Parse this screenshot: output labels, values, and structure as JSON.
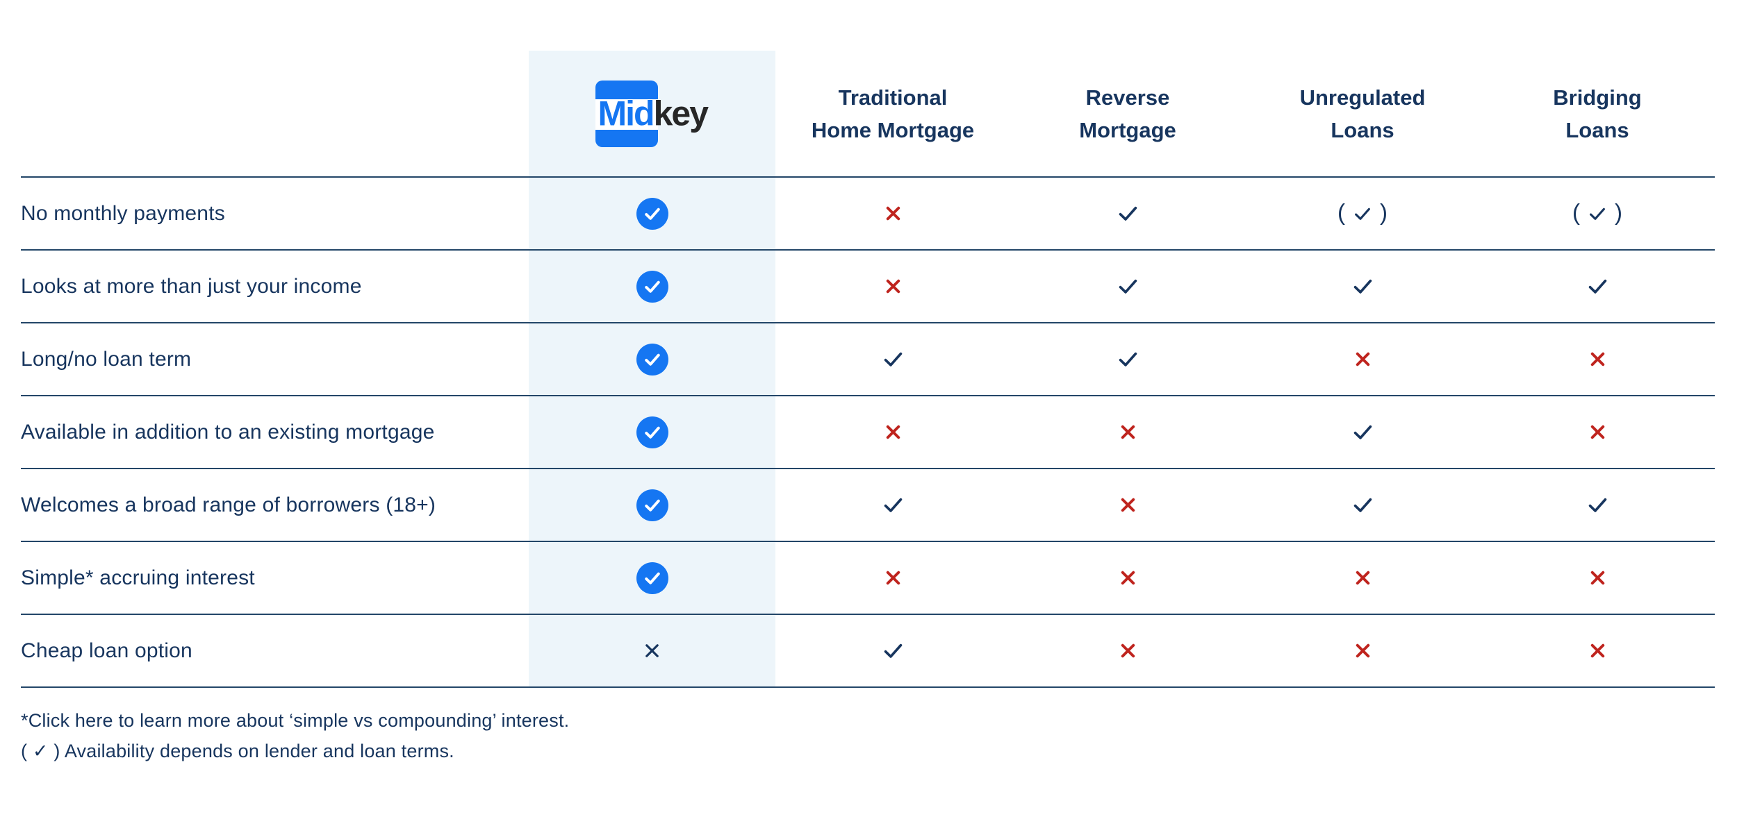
{
  "brand": {
    "mid": "Mid",
    "key": "key"
  },
  "columns": [
    {
      "id": "traditional",
      "lines": [
        "Traditional",
        "Home Mortgage"
      ]
    },
    {
      "id": "reverse",
      "lines": [
        "Reverse",
        "Mortgage"
      ]
    },
    {
      "id": "unregulated",
      "lines": [
        "Unregulated",
        "Loans"
      ]
    },
    {
      "id": "bridging",
      "lines": [
        "Bridging",
        "Loans"
      ]
    }
  ],
  "rows": [
    {
      "feature": "No monthly payments",
      "marks": [
        "midkey-check",
        "cross",
        "check",
        "check-paren",
        "check-paren"
      ]
    },
    {
      "feature": "Looks at more than just your income",
      "marks": [
        "midkey-check",
        "cross",
        "check",
        "check",
        "check"
      ]
    },
    {
      "feature": "Long/no loan term",
      "marks": [
        "midkey-check",
        "check",
        "check",
        "cross",
        "cross"
      ]
    },
    {
      "feature": "Available in addition to an existing mortgage",
      "marks": [
        "midkey-check",
        "cross",
        "cross",
        "check",
        "cross"
      ]
    },
    {
      "feature": "Welcomes a broad range of borrowers (18+)",
      "marks": [
        "midkey-check",
        "check",
        "cross",
        "check",
        "check"
      ]
    },
    {
      "feature": "Simple* accruing interest",
      "marks": [
        "midkey-check",
        "cross",
        "cross",
        "cross",
        "cross"
      ]
    },
    {
      "feature": "Cheap loan option",
      "marks": [
        "midkey-cross",
        "check",
        "cross",
        "cross",
        "cross"
      ]
    }
  ],
  "footnotes": [
    "*Click here to learn more about ‘simple vs compounding’ interest.",
    "( ✓ ) Availability depends on lender and loan terms."
  ],
  "colors": {
    "accent_blue": "#1576f2",
    "navy_text": "#17355e",
    "red_cross": "#bf241e",
    "midkey_band": "#edf5fa"
  }
}
